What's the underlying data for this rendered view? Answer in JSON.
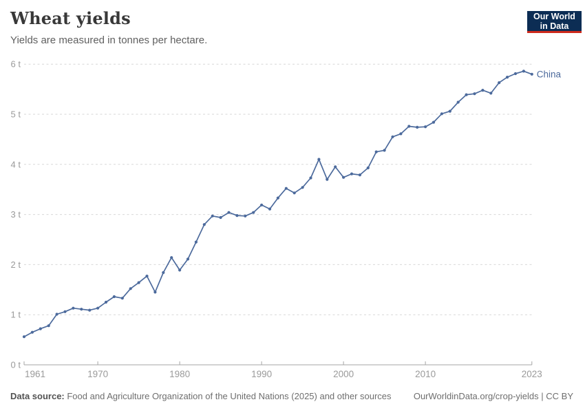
{
  "header": {
    "title": "Wheat yields",
    "subtitle": "Yields are measured in tonnes per hectare.",
    "logo": {
      "line1": "Our World",
      "line2": "in Data",
      "bg_color": "#0C2D54",
      "accent_color": "#CE2A1C"
    }
  },
  "chart_data": {
    "type": "line",
    "title": "Wheat yields",
    "unit": "tonnes per hectare",
    "xlabel": "",
    "ylabel": "",
    "xlim": [
      1961,
      2023
    ],
    "ylim": [
      0,
      6
    ],
    "x_ticks": [
      1961,
      1970,
      1980,
      1990,
      2000,
      2010,
      2023
    ],
    "y_ticks": [
      0,
      1,
      2,
      3,
      4,
      5,
      6
    ],
    "y_tick_suffix": " t",
    "grid": "horizontal-dashed",
    "legend_position": "end-of-line-label",
    "series": [
      {
        "name": "China",
        "color": "#4C6A9C",
        "years": [
          1961,
          1962,
          1963,
          1964,
          1965,
          1966,
          1967,
          1968,
          1969,
          1970,
          1971,
          1972,
          1973,
          1974,
          1975,
          1976,
          1977,
          1978,
          1979,
          1980,
          1981,
          1982,
          1983,
          1984,
          1985,
          1986,
          1987,
          1988,
          1989,
          1990,
          1991,
          1992,
          1993,
          1994,
          1995,
          1996,
          1997,
          1998,
          1999,
          2000,
          2001,
          2002,
          2003,
          2004,
          2005,
          2006,
          2007,
          2008,
          2009,
          2010,
          2011,
          2012,
          2013,
          2014,
          2015,
          2016,
          2017,
          2018,
          2019,
          2020,
          2021,
          2022,
          2023
        ],
        "values": [
          0.56,
          0.65,
          0.72,
          0.78,
          1.01,
          1.06,
          1.13,
          1.11,
          1.09,
          1.13,
          1.25,
          1.36,
          1.33,
          1.52,
          1.64,
          1.77,
          1.45,
          1.84,
          2.14,
          1.89,
          2.11,
          2.45,
          2.8,
          2.97,
          2.94,
          3.04,
          2.98,
          2.97,
          3.04,
          3.19,
          3.11,
          3.33,
          3.52,
          3.43,
          3.54,
          3.73,
          4.1,
          3.7,
          3.95,
          3.74,
          3.81,
          3.79,
          3.93,
          4.25,
          4.28,
          4.55,
          4.61,
          4.76,
          4.74,
          4.75,
          4.84,
          5.01,
          5.06,
          5.24,
          5.39,
          5.41,
          5.48,
          5.42,
          5.63,
          5.74,
          5.81,
          5.86,
          5.8
        ]
      }
    ],
    "colors": {
      "gridline": "#d7d7d7",
      "axis_line": "#a5a5a5",
      "tick_label": "#9a9a9a"
    }
  },
  "footer": {
    "source_label": "Data source:",
    "source_text": " Food and Agriculture Organization of the United Nations (2025) and other sources",
    "link_text": "OurWorldinData.org/crop-yields | CC BY"
  }
}
